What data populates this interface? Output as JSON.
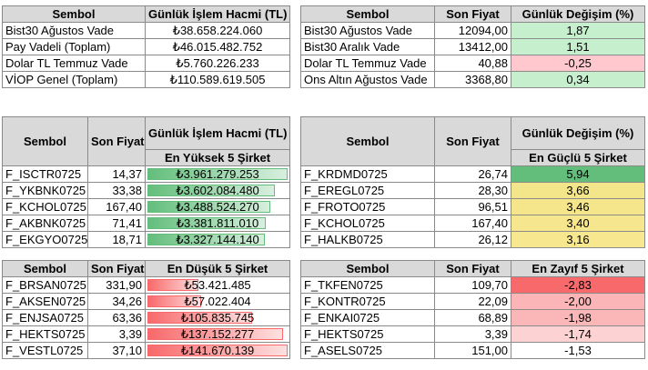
{
  "summary_left": {
    "headers": [
      "Sembol",
      "Günlük İşlem Hacmi (TL)"
    ],
    "rows": [
      {
        "symbol": "Bist30 Ağustos Vade",
        "value": "₺38.658.224.060"
      },
      {
        "symbol": "Pay Vadeli (Toplam)",
        "value": "₺46.015.482.752"
      },
      {
        "symbol": "Dolar TL Temmuz Vade",
        "value": "₺5.760.226.233"
      },
      {
        "symbol": "VİOP Genel (Toplam)",
        "value": "₺110.589.619.505"
      }
    ]
  },
  "summary_right": {
    "headers": [
      "Sembol",
      "Son Fiyat",
      "Günlük Değişim (%)"
    ],
    "rows": [
      {
        "symbol": "Bist30 Ağustos Vade",
        "price": "12094,00",
        "change": "1,87",
        "color": "#c6efce"
      },
      {
        "symbol": "Bist30 Aralık Vade",
        "price": "13412,00",
        "change": "1,51",
        "color": "#c6efce"
      },
      {
        "symbol": "Dolar TL Temmuz Vade",
        "price": "40,88",
        "change": "-0,25",
        "color": "#ffc7ce"
      },
      {
        "symbol": "Ons Altın Ağustos Vade",
        "price": "3368,80",
        "change": "0,34",
        "color": "#c6efce"
      }
    ]
  },
  "top_volume": {
    "headers": [
      "Sembol",
      "Son Fiyat",
      "Günlük İşlem Hacmi (TL)"
    ],
    "subheader": "En Yüksek 5 Şirket",
    "rows": [
      {
        "symbol": "F_ISCTR0725",
        "price": "14,37",
        "volume": "₺3.961.279.253",
        "fill": 1.0
      },
      {
        "symbol": "F_YKBNK0725",
        "price": "33,38",
        "volume": "₺3.602.084.480",
        "fill": 0.91
      },
      {
        "symbol": "F_KCHOL0725",
        "price": "167,40",
        "volume": "₺3.488.524.270",
        "fill": 0.88
      },
      {
        "symbol": "F_AKBNK0725",
        "price": "71,41",
        "volume": "₺3.381.811.010",
        "fill": 0.85
      },
      {
        "symbol": "F_EKGYO0725",
        "price": "18,71",
        "volume": "₺3.327.144.140",
        "fill": 0.84
      }
    ]
  },
  "top_gainers": {
    "headers": [
      "Sembol",
      "Son Fiyat",
      "Günlük Değişim (%)"
    ],
    "subheader": "En Güçlü 5 Şirket",
    "rows": [
      {
        "symbol": "F_KRDMD0725",
        "price": "26,74",
        "change": "5,94",
        "color": "#63be7b"
      },
      {
        "symbol": "F_EREGL0725",
        "price": "28,30",
        "change": "3,66",
        "color": "#f2e58a"
      },
      {
        "symbol": "F_FROTO0725",
        "price": "96,51",
        "change": "3,46",
        "color": "#f5e68c"
      },
      {
        "symbol": "F_KCHOL0725",
        "price": "167,40",
        "change": "3,40",
        "color": "#f6e68d"
      },
      {
        "symbol": "F_HALKB0725",
        "price": "26,12",
        "change": "3,16",
        "color": "#f7e88f"
      }
    ]
  },
  "low_volume": {
    "headers": [
      "Sembol",
      "Son Fiyat",
      "En Düşük 5 Şirket"
    ],
    "rows": [
      {
        "symbol": "F_BRSAN0725",
        "price": "331,90",
        "volume": "₺53.421.485",
        "fill": 0.38
      },
      {
        "symbol": "F_AKSEN0725",
        "price": "34,26",
        "volume": "₺57.022.404",
        "fill": 0.4
      },
      {
        "symbol": "F_ENJSA0725",
        "price": "63,36",
        "volume": "₺105.835.745",
        "fill": 0.75
      },
      {
        "symbol": "F_HEKTS0725",
        "price": "3,39",
        "volume": "₺137.152.277",
        "fill": 0.97
      },
      {
        "symbol": "F_VESTL0725",
        "price": "37,10",
        "volume": "₺141.670.139",
        "fill": 1.0
      }
    ]
  },
  "top_losers": {
    "headers": [
      "Sembol",
      "Son Fiyat",
      "En Zayıf 5 Şirket"
    ],
    "rows": [
      {
        "symbol": "F_TKFEN0725",
        "price": "109,70",
        "change": "-2,83",
        "color": "#f8696b"
      },
      {
        "symbol": "F_KONTR0725",
        "price": "22,09",
        "change": "-2,00",
        "color": "#fbb5b6"
      },
      {
        "symbol": "F_ENKAI0725",
        "price": "68,89",
        "change": "-1,98",
        "color": "#fbb7b8"
      },
      {
        "symbol": "F_HEKTS0725",
        "price": "3,39",
        "change": "-1,74",
        "color": "#fcd2d3"
      },
      {
        "symbol": "F_ASELS0725",
        "price": "151,00",
        "change": "-1,53",
        "color": "#ffffff"
      }
    ]
  }
}
